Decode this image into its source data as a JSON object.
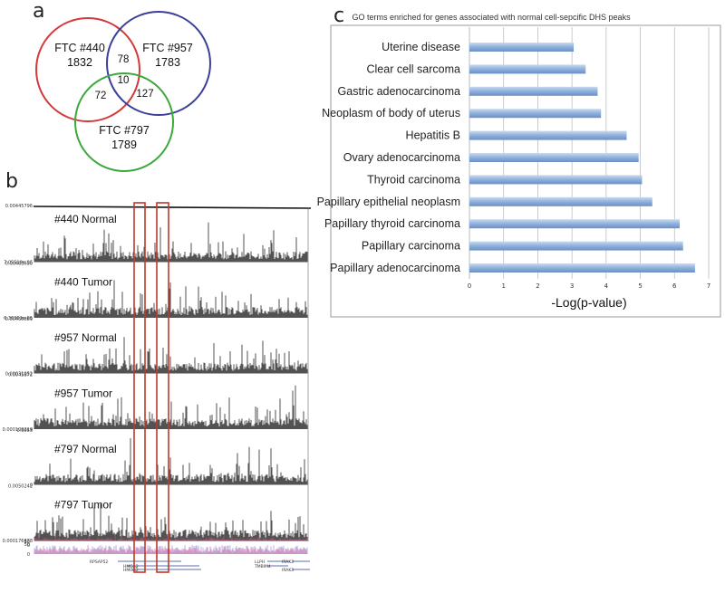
{
  "panels": {
    "a": "a",
    "b": "b",
    "c": "c"
  },
  "venn": {
    "sets": [
      {
        "name": "FTC #440",
        "unique": "1832",
        "color": "#d23a3a"
      },
      {
        "name": "FTC #957",
        "unique": "1783",
        "color": "#3a3f9a"
      },
      {
        "name": "FTC #797",
        "unique": "1789",
        "color": "#3aa83a"
      }
    ],
    "overlaps": {
      "440_957": "78",
      "440_797": "72",
      "957_797": "127",
      "all": "10"
    }
  },
  "tracks": {
    "rows": [
      {
        "label": "#440 Normal",
        "top_scale": "0.00445796",
        "bottom_scale": "7.05519e-05"
      },
      {
        "label": "#440 Tumor",
        "top_scale": "0.00483630",
        "bottom_scale": "6.36361e-05"
      },
      {
        "label": "#957 Normal",
        "top_scale": "0.00465889",
        "bottom_scale": "0.00031052"
      },
      {
        "label": "#957 Tumor",
        "top_scale": "0.0045872",
        "bottom_scale": "0.000109219"
      },
      {
        "label": "#797 Normal",
        "top_scale": "0.0055",
        "bottom_scale": "0"
      },
      {
        "label": "#797 Tumor",
        "top_scale": "0.0050242",
        "bottom_scale": "0.000176678"
      }
    ],
    "conservation_scale": [
      "50",
      "0",
      "50",
      "0"
    ],
    "genes_left": [
      "RPSAP52",
      "HMGA2",
      "HMGA2"
    ],
    "genes_right": [
      "LLPH",
      "TMBIM4",
      "IRAK3",
      "IRAK3"
    ],
    "highlight_color": "#c0392b"
  },
  "chart_data": {
    "type": "bar",
    "orientation": "horizontal",
    "title": "GO terms enriched for genes associated with normal cell-sepcific DHS peaks",
    "xlabel": "-Log(p-value)",
    "ylabel": "",
    "xlim": [
      0,
      7
    ],
    "xticks": [
      "0",
      "1",
      "2",
      "3",
      "4",
      "5",
      "6",
      "7"
    ],
    "grid": true,
    "categories": [
      "Uterine disease",
      "Clear cell sarcoma",
      "Gastric adenocarcinoma",
      "Neoplasm of body of uterus",
      "Hepatitis B",
      "Ovary adenocarcinoma",
      "Thyroid carcinoma",
      "Papillary epithelial neoplasm",
      "Papillary thyroid carcinoma",
      "Papillary carcinoma",
      "Papillary adenocarcinoma"
    ],
    "values": [
      3.05,
      3.4,
      3.75,
      3.85,
      4.6,
      4.95,
      5.05,
      5.35,
      6.15,
      6.25,
      6.6
    ],
    "bar_color": "#8fb1dc"
  }
}
